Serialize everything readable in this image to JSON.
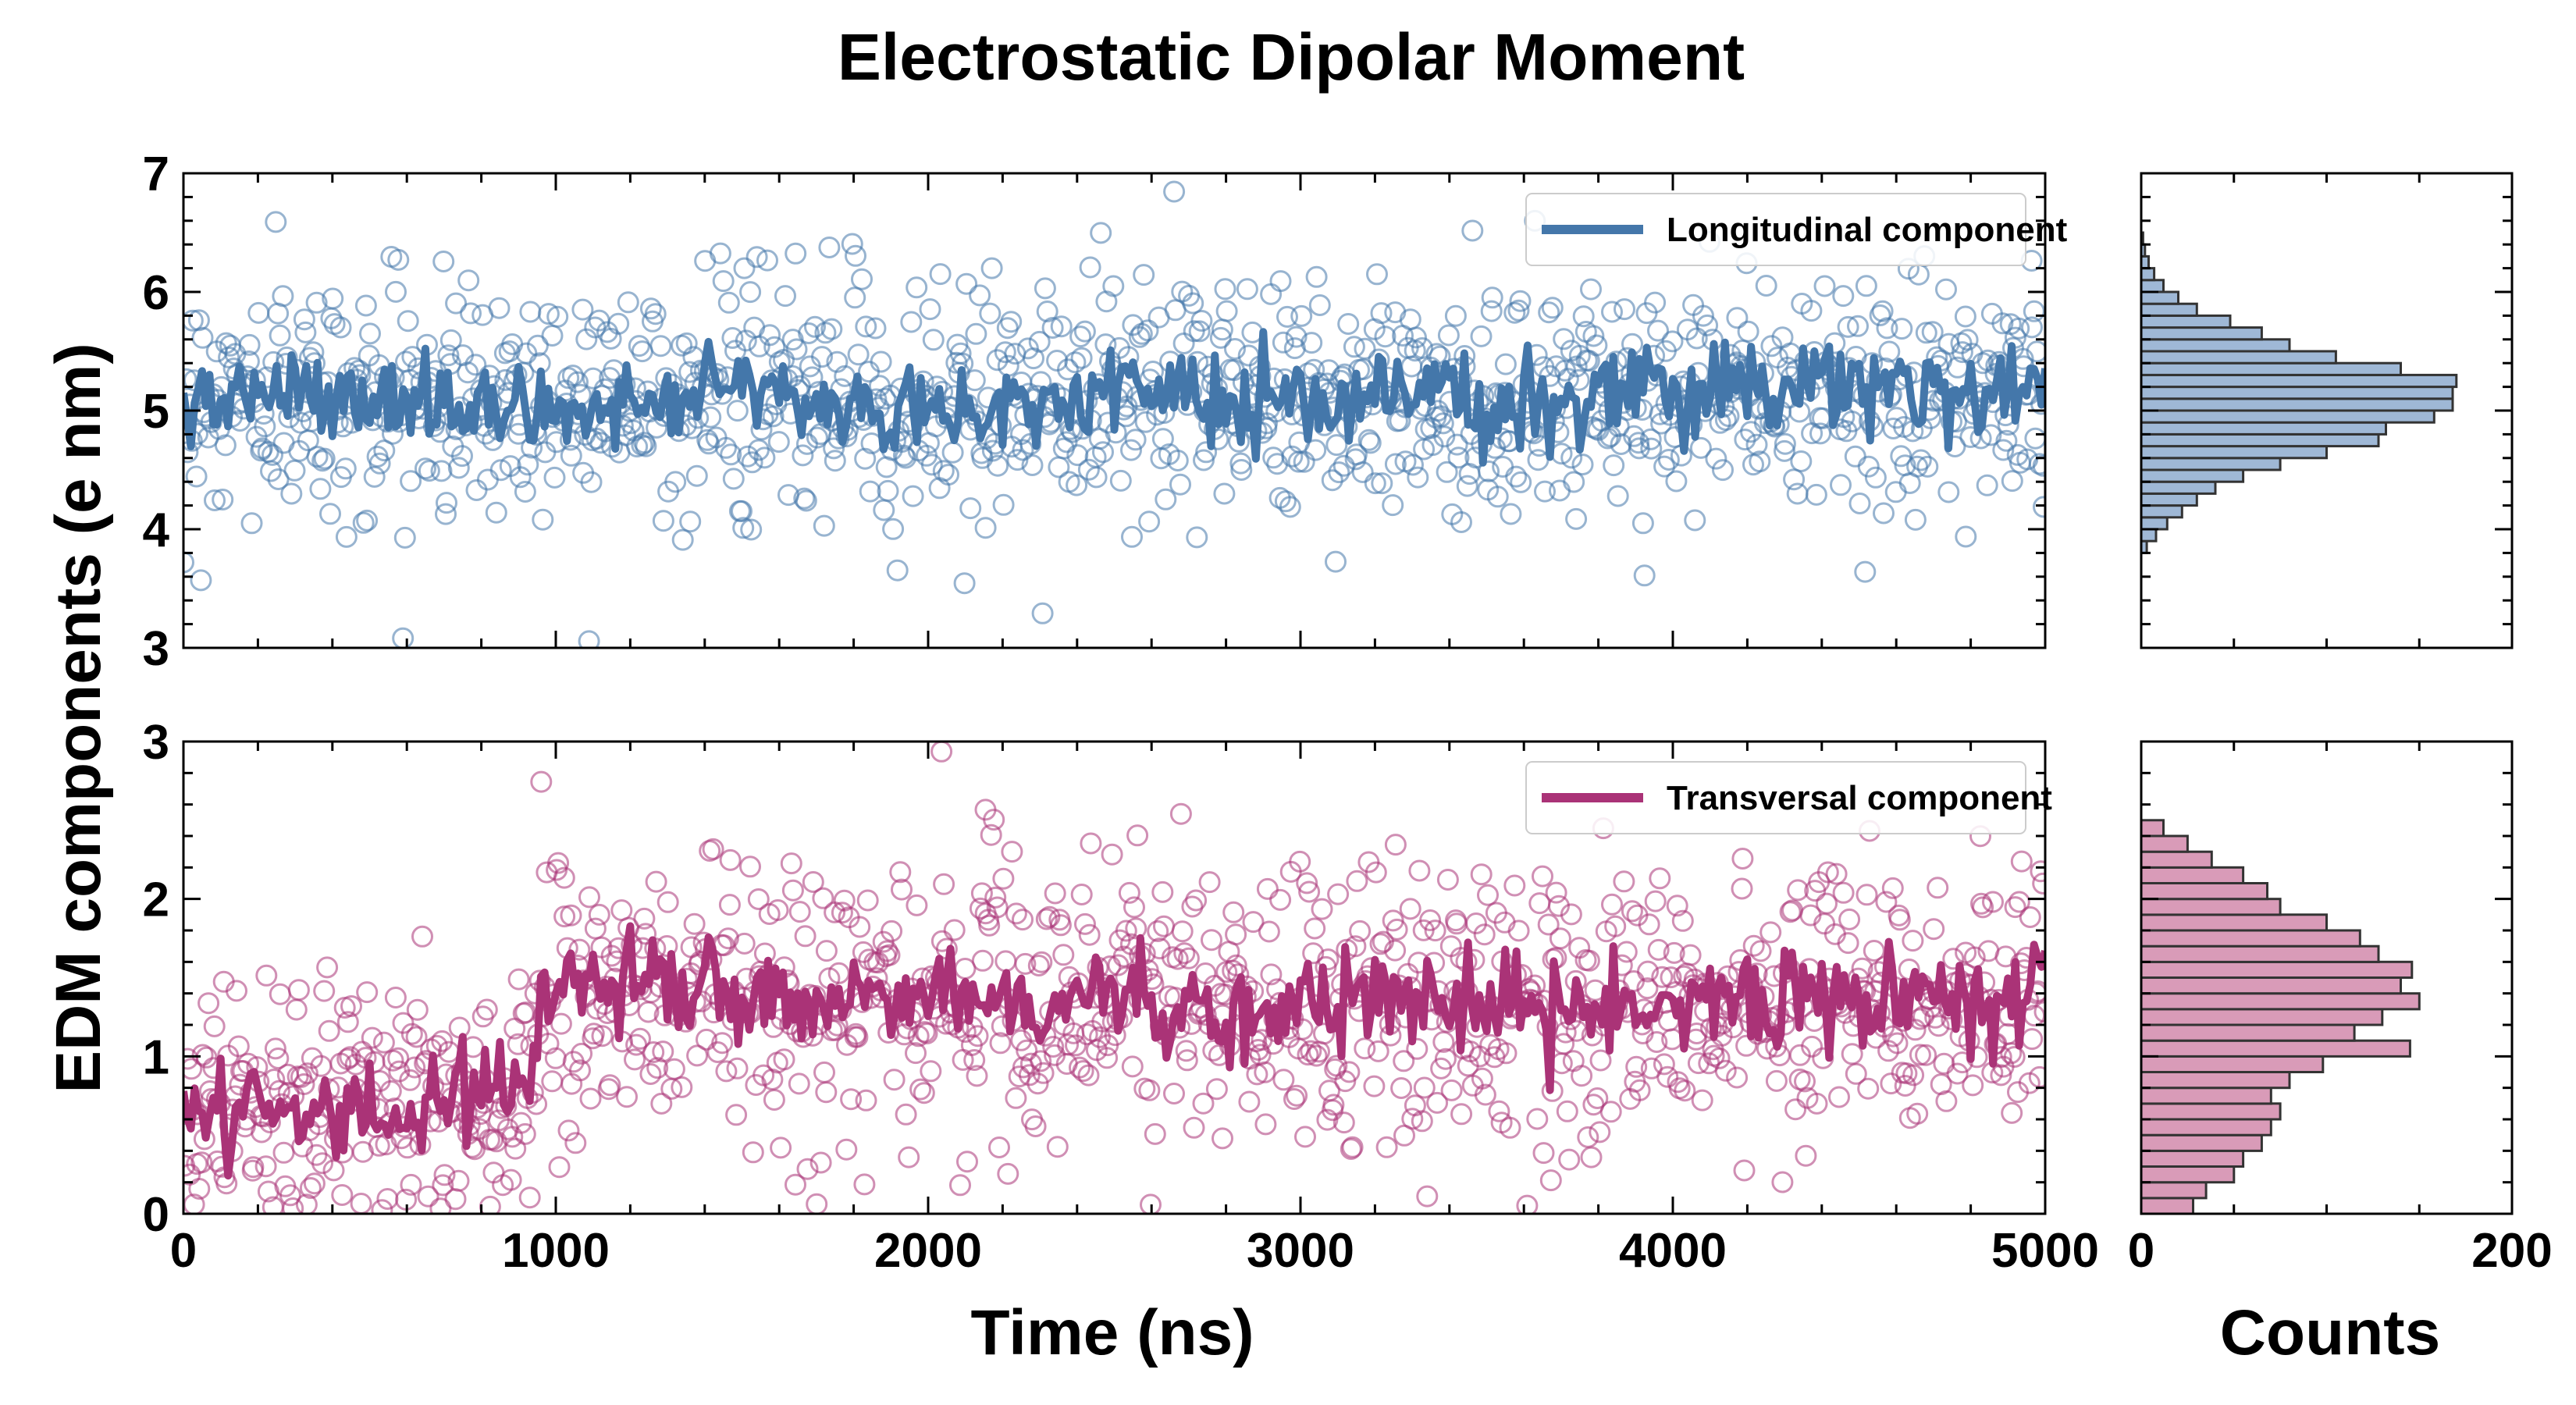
{
  "chart_data": {
    "type": "scatter",
    "title": "Electrostatic Dipolar Moment",
    "xlabel": "Time (ns)",
    "ylabel": "EDM components (e nm)",
    "hist_xlabel": "Counts",
    "colors": {
      "longitudinal": "#4477aa",
      "transversal": "#aa3377"
    },
    "panels": [
      {
        "name": "Longitudinal component",
        "xlim": [
          0,
          5000
        ],
        "ylim": [
          3,
          7
        ],
        "xticks": [
          "0",
          "1000",
          "2000",
          "3000",
          "4000",
          "5000"
        ],
        "yticks": [
          "3",
          "4",
          "5",
          "6",
          "7"
        ],
        "scatter": {
          "mean": 5.1,
          "std": 0.5,
          "n": 1100
        },
        "running_mean": {
          "x": [
            0,
            250,
            500,
            750,
            1000,
            1250,
            1500,
            1750,
            2000,
            2250,
            2500,
            2750,
            3000,
            3250,
            3500,
            3750,
            4000,
            4250,
            4500,
            4750,
            5000
          ],
          "y": [
            5.0,
            5.15,
            5.05,
            5.1,
            5.0,
            5.1,
            5.15,
            5.05,
            5.0,
            5.05,
            5.2,
            5.1,
            5.0,
            5.2,
            5.05,
            5.1,
            5.15,
            5.2,
            5.25,
            5.25,
            5.1
          ],
          "noise": 0.22
        },
        "legend": {
          "label": "Longitudinal component",
          "location": "upper right"
        }
      },
      {
        "name": "Transversal component",
        "xlim": [
          0,
          5000
        ],
        "ylim": [
          0,
          3
        ],
        "xticks": [
          "0",
          "1000",
          "2000",
          "3000",
          "4000",
          "5000"
        ],
        "yticks": [
          "0",
          "1",
          "2",
          "3"
        ],
        "scatter": {
          "segments": [
            {
              "from": 0,
              "to": 950,
              "mean": 0.7,
              "std": 0.4
            },
            {
              "from": 950,
              "to": 5000,
              "mean": 1.35,
              "std": 0.45
            }
          ],
          "n": 1100
        },
        "running_mean": {
          "x": [
            0,
            200,
            400,
            600,
            800,
            930,
            960,
            1100,
            1300,
            1500,
            1700,
            1900,
            2100,
            2300,
            2500,
            2700,
            2900,
            3100,
            3300,
            3500,
            3700,
            3900,
            4100,
            4300,
            4500,
            4700,
            4900,
            5000
          ],
          "y": [
            0.7,
            0.65,
            0.7,
            0.65,
            0.75,
            0.8,
            1.45,
            1.55,
            1.45,
            1.35,
            1.3,
            1.4,
            1.45,
            1.3,
            1.4,
            1.25,
            1.3,
            1.4,
            1.35,
            1.3,
            1.35,
            1.4,
            1.35,
            1.45,
            1.35,
            1.4,
            1.3,
            1.5
          ],
          "noise": 0.18
        },
        "legend": {
          "label": "Transversal component",
          "location": "upper right"
        }
      }
    ],
    "histograms": [
      {
        "panel": "Longitudinal component",
        "orientation": "horizontal",
        "xlim": [
          0,
          200
        ],
        "xticks": [
          "0",
          "200"
        ],
        "bin_edges": [
          3.8,
          3.9,
          4.0,
          4.1,
          4.2,
          4.3,
          4.4,
          4.5,
          4.6,
          4.7,
          4.8,
          4.9,
          5.0,
          5.1,
          5.2,
          5.3,
          5.4,
          5.5,
          5.6,
          5.7,
          5.8,
          5.9,
          6.0,
          6.1,
          6.2,
          6.3,
          6.4,
          6.5
        ],
        "counts": [
          3,
          8,
          14,
          22,
          30,
          40,
          55,
          75,
          100,
          128,
          132,
          158,
          168,
          168,
          170,
          140,
          105,
          80,
          65,
          48,
          30,
          20,
          12,
          7,
          4,
          2,
          1
        ]
      },
      {
        "panel": "Transversal component",
        "orientation": "horizontal",
        "xlim": [
          0,
          200
        ],
        "xticks": [
          "0",
          "200"
        ],
        "bin_edges": [
          0.0,
          0.1,
          0.2,
          0.3,
          0.4,
          0.5,
          0.6,
          0.7,
          0.8,
          0.9,
          1.0,
          1.1,
          1.2,
          1.3,
          1.4,
          1.5,
          1.6,
          1.7,
          1.8,
          1.9,
          2.0,
          2.1,
          2.2,
          2.3,
          2.4,
          2.5
        ],
        "counts": [
          28,
          35,
          50,
          55,
          65,
          70,
          75,
          70,
          80,
          98,
          145,
          115,
          130,
          150,
          140,
          146,
          128,
          118,
          100,
          75,
          68,
          55,
          38,
          25,
          12
        ]
      }
    ]
  }
}
